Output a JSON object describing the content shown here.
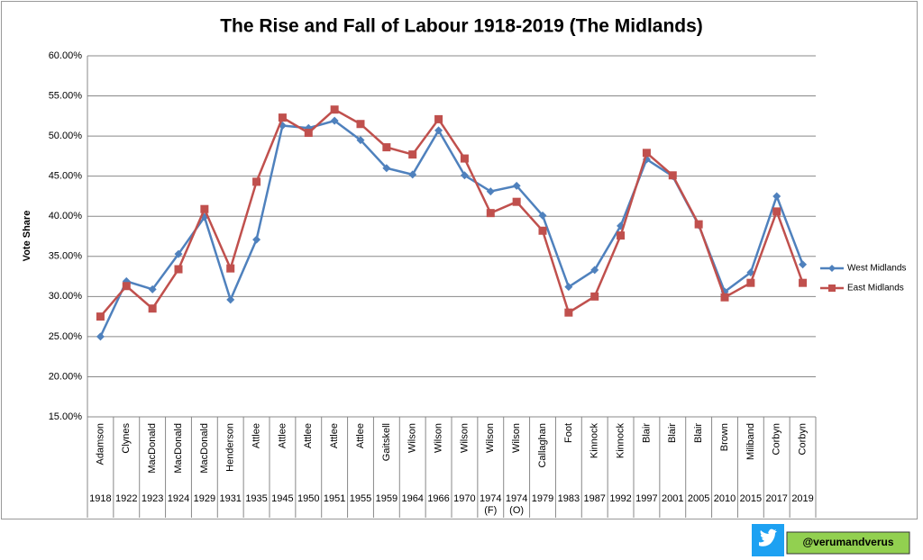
{
  "chart_data": {
    "type": "line",
    "title": "The Rise and Fall of Labour 1918-2019 (The Midlands)",
    "y_label": "Vote Share",
    "leaders": [
      "Adamson",
      "Clynes",
      "MacDonald",
      "MacDonald",
      "MacDonald",
      "Henderson",
      "Attlee",
      "Attlee",
      "Attlee",
      "Attlee",
      "Attlee",
      "Gaitskell",
      "Wilson",
      "Wilson",
      "Wilson",
      "Wilson",
      "Wilson",
      "Callaghan",
      "Foot",
      "Kinnock",
      "Kinnock",
      "Blair",
      "Blair",
      "Blair",
      "Brown",
      "Miliband",
      "Corbyn",
      "Corbyn"
    ],
    "categories": [
      "1918",
      "1922",
      "1923",
      "1924",
      "1929",
      "1931",
      "1935",
      "1945",
      "1950",
      "1951",
      "1955",
      "1959",
      "1964",
      "1966",
      "1970",
      "1974 (F)",
      "1974 (O)",
      "1979",
      "1983",
      "1987",
      "1992",
      "1997",
      "2001",
      "2005",
      "2010",
      "2015",
      "2017",
      "2019"
    ],
    "series": [
      {
        "name": "West Midlands",
        "color": "#4f81bd",
        "marker": "diamond",
        "values": [
          25.0,
          31.9,
          30.9,
          35.3,
          39.9,
          29.6,
          37.1,
          51.3,
          51.0,
          51.9,
          49.5,
          46.0,
          45.2,
          50.7,
          45.1,
          43.1,
          43.8,
          40.1,
          31.2,
          33.3,
          38.8,
          47.1,
          45.0,
          38.9,
          30.6,
          33.0,
          42.5,
          34.0
        ]
      },
      {
        "name": "East Midlands",
        "color": "#c0504d",
        "marker": "square",
        "values": [
          27.5,
          31.3,
          28.5,
          33.4,
          40.9,
          33.5,
          44.3,
          52.3,
          50.4,
          53.3,
          51.5,
          48.6,
          47.7,
          52.1,
          47.2,
          40.4,
          41.8,
          38.2,
          28.0,
          30.0,
          37.6,
          47.9,
          45.1,
          39.0,
          29.9,
          31.7,
          40.6,
          31.7
        ]
      }
    ],
    "ylim": [
      15,
      60
    ],
    "yticks": [
      {
        "value": 15,
        "label": "15.00%"
      },
      {
        "value": 20,
        "label": "20.00%"
      },
      {
        "value": 25,
        "label": "25.00%"
      },
      {
        "value": 30,
        "label": "30.00%"
      },
      {
        "value": 35,
        "label": "35.00%"
      },
      {
        "value": 40,
        "label": "40.00%"
      },
      {
        "value": 45,
        "label": "45.00%"
      },
      {
        "value": 50,
        "label": "50.00%"
      },
      {
        "value": 55,
        "label": "55.00%"
      },
      {
        "value": 60,
        "label": "60.00%"
      }
    ],
    "grid": true,
    "legend": "right"
  },
  "watermark": "@verumandverus"
}
